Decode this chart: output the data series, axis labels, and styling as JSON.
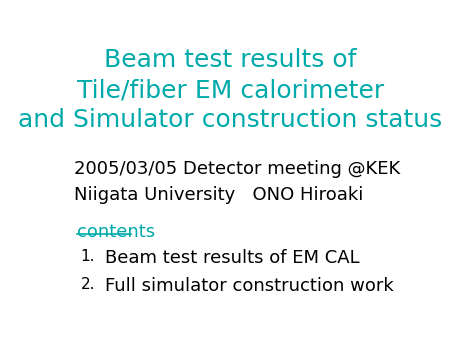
{
  "title_lines": [
    "Beam test results of",
    "Tile/fiber EM calorimeter",
    "and Simulator construction status"
  ],
  "title_color": "#00AAAA",
  "title_fontsize": 18,
  "info_line1": "2005/03/05 Detector meeting @KEK",
  "info_line2": "Niigata University   ONO Hiroaki",
  "info_color": "#000000",
  "info_fontsize": 13,
  "contents_label": "contents",
  "contents_color": "#00AAAA",
  "contents_fontsize": 13,
  "items": [
    "Beam test results of EM CAL",
    "Full simulator construction work"
  ],
  "items_color": "#000000",
  "items_fontsize": 13,
  "background_color": "#ffffff"
}
